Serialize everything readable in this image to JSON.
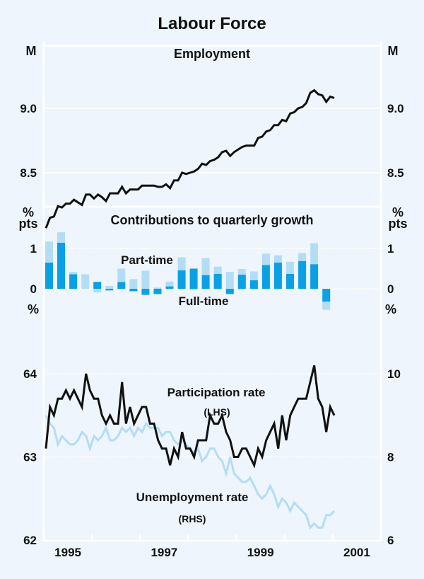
{
  "title": "Labour Force",
  "colors": {
    "background": "#eef5fc",
    "employment_line": "#111111",
    "full_time_bar": "#0aa0e6",
    "part_time_bar": "#b3ddf5",
    "participation_line": "#111111",
    "unemployment_line": "#b3ddf5"
  },
  "chart_data": [
    {
      "type": "line",
      "title": "Employment",
      "ylabel_left": "M",
      "ylabel_right": "M",
      "ylim": [
        8.0,
        9.35
      ],
      "yticks": [
        {
          "value": 8.5,
          "label": "8.5"
        },
        {
          "value": 9.0,
          "label": "9.0"
        }
      ],
      "x_start": 1995.0,
      "x_step_months": 1,
      "grid": true,
      "series": [
        {
          "name": "Employment",
          "values": [
            8.07,
            8.15,
            8.16,
            8.24,
            8.23,
            8.26,
            8.26,
            8.29,
            8.27,
            8.25,
            8.33,
            8.33,
            8.3,
            8.33,
            8.31,
            8.28,
            8.34,
            8.34,
            8.34,
            8.39,
            8.34,
            8.37,
            8.37,
            8.37,
            8.4,
            8.4,
            8.4,
            8.4,
            8.39,
            8.39,
            8.41,
            8.38,
            8.44,
            8.44,
            8.5,
            8.49,
            8.5,
            8.51,
            8.53,
            8.57,
            8.56,
            8.59,
            8.6,
            8.62,
            8.66,
            8.67,
            8.63,
            8.66,
            8.68,
            8.7,
            8.71,
            8.71,
            8.71,
            8.77,
            8.78,
            8.82,
            8.83,
            8.87,
            8.87,
            8.91,
            8.9,
            8.96,
            8.97,
            9.0,
            9.01,
            9.04,
            9.12,
            9.14,
            9.11,
            9.1,
            9.05,
            9.09,
            9.08
          ]
        }
      ]
    },
    {
      "type": "bar",
      "stacked": true,
      "title": "Contributions to quarterly growth",
      "ylabel_left": "% pts",
      "ylabel_right": "% pts",
      "ylim": [
        -0.6,
        1.5
      ],
      "yticks": [
        {
          "value": 0,
          "label": "0"
        },
        {
          "value": 1,
          "label": "1"
        }
      ],
      "x_start": 1995.0,
      "x_step_months": 3,
      "annotations": [
        "Part-time",
        "Full-time"
      ],
      "series": [
        {
          "name": "Full-time",
          "values": [
            0.65,
            1.14,
            0.36,
            0.0,
            0.17,
            -0.04,
            0.17,
            -0.06,
            -0.15,
            -0.13,
            0.06,
            0.46,
            0.5,
            0.34,
            0.37,
            -0.13,
            0.35,
            0.21,
            0.59,
            0.65,
            0.37,
            0.69,
            0.61,
            -0.32
          ]
        },
        {
          "name": "Part-time",
          "values": [
            0.52,
            0.26,
            0.06,
            0.36,
            -0.09,
            0.07,
            0.33,
            0.24,
            0.45,
            0.03,
            0.12,
            0.32,
            -0.03,
            0.42,
            0.18,
            0.42,
            0.14,
            0.22,
            0.28,
            0.18,
            0.3,
            0.2,
            0.52,
            -0.2
          ]
        }
      ]
    },
    {
      "type": "line",
      "ylabel_left": "%",
      "ylabel_right": "%",
      "x_start": 1995.0,
      "x_step_months": 1,
      "xlim": [
        1995.0,
        2002.0
      ],
      "xticks": [
        {
          "value": 1995.5,
          "label": "1995"
        },
        {
          "value": 1997.5,
          "label": "1997"
        },
        {
          "value": 1999.5,
          "label": "1999"
        },
        {
          "value": 2001.5,
          "label": "2001"
        }
      ],
      "xtick_marks": [
        1996,
        1997,
        1998,
        1999,
        2000,
        2001
      ],
      "ylim_left": [
        62,
        64.9
      ],
      "yticks_left": [
        {
          "value": 62,
          "label": "62"
        },
        {
          "value": 63,
          "label": "63"
        },
        {
          "value": 64,
          "label": "64"
        }
      ],
      "ylim_right": [
        6,
        11.8
      ],
      "yticks_right": [
        {
          "value": 6,
          "label": "6"
        },
        {
          "value": 8,
          "label": "8"
        },
        {
          "value": 10,
          "label": "10"
        }
      ],
      "grid": true,
      "series": [
        {
          "name": "Participation rate",
          "axis": "LHS",
          "label": "Participation rate",
          "sublabel": "(LHS)",
          "values": [
            63.1,
            63.6,
            63.5,
            63.7,
            63.7,
            63.8,
            63.7,
            63.8,
            63.7,
            63.6,
            64.0,
            63.8,
            63.7,
            63.7,
            63.5,
            63.4,
            63.5,
            63.4,
            63.4,
            63.9,
            63.4,
            63.6,
            63.4,
            63.5,
            63.6,
            63.6,
            63.4,
            63.4,
            63.2,
            63.1,
            63.1,
            62.9,
            63.1,
            63.0,
            63.3,
            63.1,
            63.1,
            63.0,
            63.2,
            63.2,
            63.2,
            63.5,
            63.4,
            63.4,
            63.5,
            63.3,
            63.2,
            63.0,
            63.0,
            63.1,
            63.1,
            63.0,
            62.9,
            63.1,
            63.0,
            63.2,
            63.3,
            63.4,
            63.1,
            63.5,
            63.2,
            63.5,
            63.6,
            63.7,
            63.7,
            63.7,
            63.9,
            64.1,
            63.7,
            63.6,
            63.3,
            63.6,
            63.5
          ]
        },
        {
          "name": "Unemployment rate",
          "axis": "RHS",
          "label": "Unemployment rate",
          "sublabel": "(RHS)",
          "values": [
            9.0,
            8.8,
            8.7,
            8.3,
            8.5,
            8.4,
            8.3,
            8.3,
            8.4,
            8.6,
            8.5,
            8.2,
            8.5,
            8.4,
            8.5,
            8.7,
            8.4,
            8.4,
            8.5,
            8.7,
            8.6,
            8.7,
            8.5,
            8.7,
            8.6,
            8.8,
            8.7,
            8.7,
            8.7,
            8.5,
            8.6,
            8.6,
            8.4,
            8.3,
            8.4,
            8.3,
            8.2,
            8.1,
            8.2,
            7.9,
            8.0,
            8.2,
            8.2,
            8.0,
            7.9,
            7.6,
            8.0,
            7.6,
            7.5,
            7.4,
            7.4,
            7.5,
            7.3,
            7.1,
            7.0,
            7.1,
            7.3,
            7.1,
            6.8,
            7.0,
            6.9,
            6.7,
            6.9,
            6.8,
            6.7,
            6.6,
            6.3,
            6.4,
            6.3,
            6.3,
            6.6,
            6.6,
            6.7
          ]
        }
      ]
    }
  ]
}
